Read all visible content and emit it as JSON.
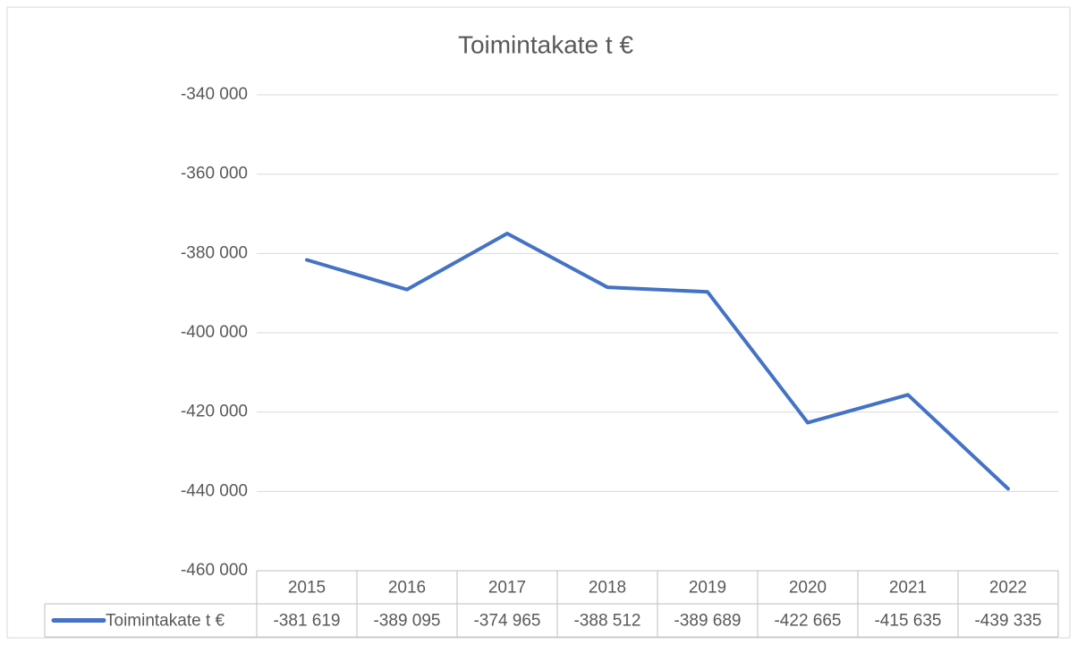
{
  "chart_data": {
    "type": "line",
    "title": "Toimintakate t €",
    "categories": [
      "2015",
      "2016",
      "2017",
      "2018",
      "2019",
      "2020",
      "2021",
      "2022"
    ],
    "series": [
      {
        "name": "Toimintakate t €",
        "color": "#4472c4",
        "values": [
          -381619,
          -389095,
          -374965,
          -388512,
          -389689,
          -422665,
          -415635,
          -439335
        ],
        "value_labels": [
          "-381 619",
          "-389 095",
          "-374 965",
          "-388 512",
          "-389 689",
          "-422 665",
          "-415 635",
          "-439 335"
        ]
      }
    ],
    "ylim": [
      -460000,
      -340000
    ],
    "yticks": [
      {
        "value": -340000,
        "label": "-340 000"
      },
      {
        "value": -360000,
        "label": "-360 000"
      },
      {
        "value": -380000,
        "label": "-380 000"
      },
      {
        "value": -400000,
        "label": "-400 000"
      },
      {
        "value": -420000,
        "label": "-420 000"
      },
      {
        "value": -440000,
        "label": "-440 000"
      },
      {
        "value": -460000,
        "label": "-460 000"
      }
    ],
    "grid": true,
    "data_table": true
  }
}
